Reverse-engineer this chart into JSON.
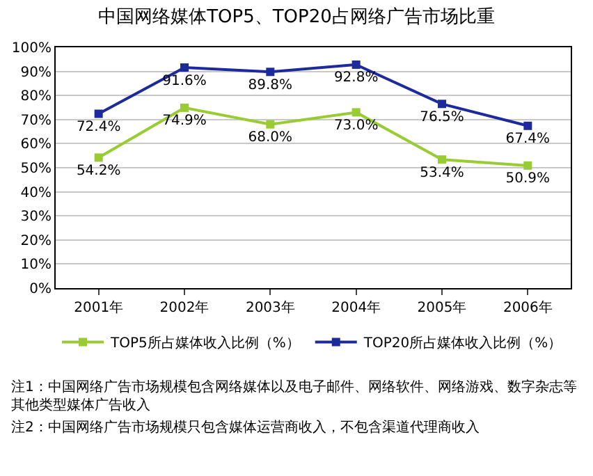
{
  "chart_data": {
    "type": "line",
    "title": "中国网络媒体TOP5、TOP20占网络广告市场比重",
    "categories": [
      "2001年",
      "2002年",
      "2003年",
      "2004年",
      "2005年",
      "2006年"
    ],
    "series": [
      {
        "name": "TOP5所占媒体收入比例（%）",
        "color": "#99cc33",
        "values": [
          54.2,
          74.9,
          68.0,
          73.0,
          53.4,
          50.9
        ],
        "value_labels": [
          "54.2%",
          "74.9%",
          "68.0%",
          "73.0%",
          "53.4%",
          "50.9%"
        ]
      },
      {
        "name": "TOP20所占媒体收入比例（%）",
        "color": "#1c2a9c",
        "values": [
          72.4,
          91.6,
          89.8,
          92.8,
          76.5,
          67.4
        ],
        "value_labels": [
          "72.4%",
          "91.6%",
          "89.8%",
          "92.8%",
          "76.5%",
          "67.4%"
        ]
      }
    ],
    "ylim": [
      0,
      100
    ],
    "yticks": [
      {
        "value": 0,
        "label": "0%"
      },
      {
        "value": 10,
        "label": "10%"
      },
      {
        "value": 20,
        "label": "20%"
      },
      {
        "value": 30,
        "label": "30%"
      },
      {
        "value": 40,
        "label": "40%"
      },
      {
        "value": 50,
        "label": "50%"
      },
      {
        "value": 60,
        "label": "60%"
      },
      {
        "value": 70,
        "label": "70%"
      },
      {
        "value": 80,
        "label": "80%"
      },
      {
        "value": 90,
        "label": "90%"
      },
      {
        "value": 100,
        "label": "100%"
      }
    ],
    "grid": "y",
    "legend": "bottom",
    "marker": "square",
    "line_style": "solid",
    "annotations": [
      "注1：中国网络广告市场规模包含网络媒体以及电子邮件、网络软件、网络游戏、数字杂志等其他类型媒体广告收入",
      "注2：中国网络广告市场规模只包含媒体运营商收入，不包含渠道代理商收入"
    ]
  }
}
